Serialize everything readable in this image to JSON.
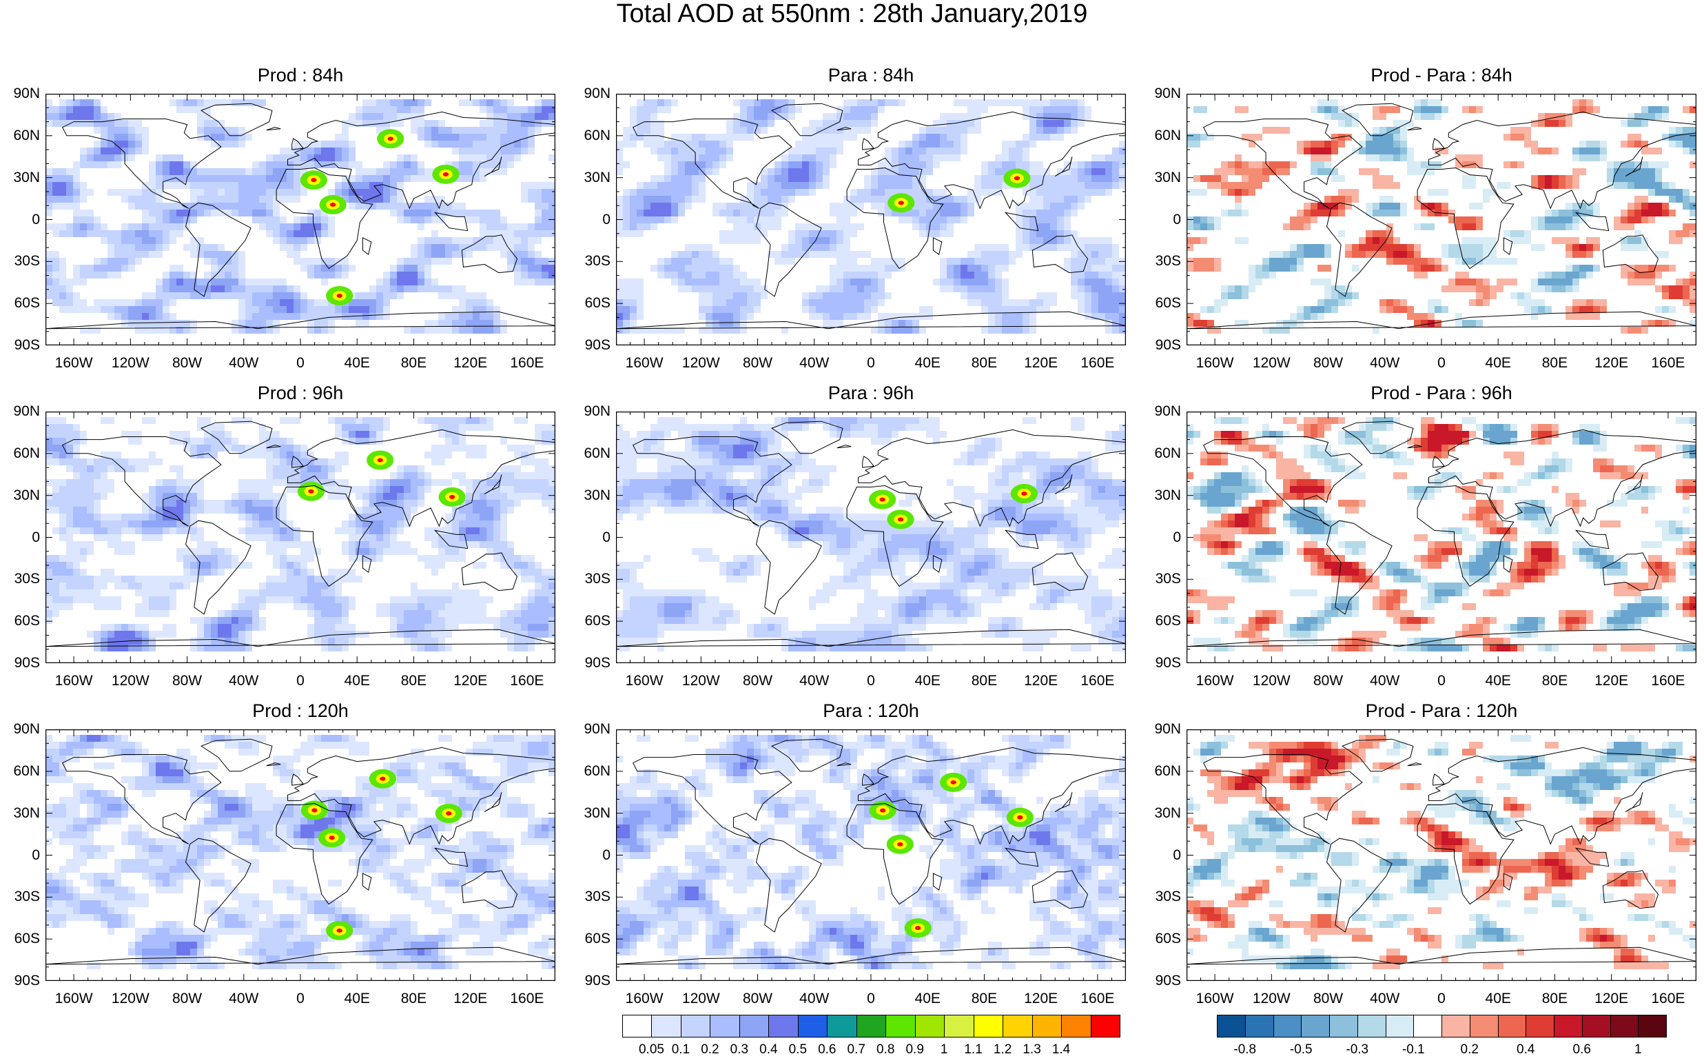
{
  "title": "Total AOD at 550nm : 28th January,2019",
  "panels": [
    {
      "title": "Prod : 84h",
      "kind": "aod",
      "seed": 11
    },
    {
      "title": "Para : 84h",
      "kind": "aod",
      "seed": 12
    },
    {
      "title": "Prod - Para : 84h",
      "kind": "diff",
      "seed": 13
    },
    {
      "title": "Prod : 96h",
      "kind": "aod",
      "seed": 21
    },
    {
      "title": "Para : 96h",
      "kind": "aod",
      "seed": 22
    },
    {
      "title": "Prod - Para : 96h",
      "kind": "diff",
      "seed": 23
    },
    {
      "title": "Prod : 120h",
      "kind": "aod",
      "seed": 31
    },
    {
      "title": "Para : 120h",
      "kind": "aod",
      "seed": 32
    },
    {
      "title": "Prod - Para : 120h",
      "kind": "diff",
      "seed": 33
    }
  ],
  "lat_labels": [
    "90N",
    "60N",
    "30N",
    "0",
    "30S",
    "60S",
    "90S"
  ],
  "lon_labels": [
    "160W",
    "120W",
    "80W",
    "40W",
    "0",
    "40E",
    "80E",
    "120E",
    "160E"
  ],
  "aod_colorbar": {
    "colors": [
      "#ffffff",
      "#dce6ff",
      "#c4d4ff",
      "#a9bdff",
      "#8ea4f5",
      "#6e78ec",
      "#1f5fe8",
      "#0f9a9a",
      "#1fa51f",
      "#5ce600",
      "#a0e600",
      "#d8f040",
      "#ffff00",
      "#ffd200",
      "#ffb400",
      "#ff8200",
      "#ff0000"
    ],
    "labels": [
      "0.05",
      "0.1",
      "0.2",
      "0.3",
      "0.4",
      "0.5",
      "0.6",
      "0.7",
      "0.8",
      "0.9",
      "1",
      "1.1",
      "1.2",
      "1.3",
      "1.4"
    ]
  },
  "diff_colorbar": {
    "colors": [
      "#0a5294",
      "#2a74b4",
      "#4b8fc4",
      "#6aa5cf",
      "#8cc0db",
      "#b4d9e9",
      "#d8ecf6",
      "#ffffff",
      "#f9b4a4",
      "#f48c74",
      "#ec6650",
      "#df3c34",
      "#c8182a",
      "#a50f23",
      "#7d0a1a",
      "#5a0510"
    ],
    "labels": [
      "-0.8",
      "-0.5",
      "-0.3",
      "-0.1",
      "0.2",
      "0.4",
      "0.6",
      "1"
    ],
    "label_positions": [
      1,
      3,
      5,
      7,
      9,
      11,
      13,
      15
    ]
  },
  "colors": {
    "land_outline": "#000000",
    "background": "#ffffff"
  }
}
